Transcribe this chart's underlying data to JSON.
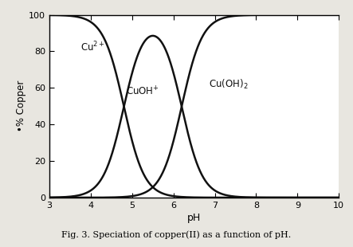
{
  "title": "Fig. 3. Speciation of copper(II) as a function of pH.",
  "xlabel": "pH",
  "ylabel": "% Copper",
  "ylabel_prefix": "•",
  "xlim": [
    3,
    10
  ],
  "ylim": [
    0,
    100
  ],
  "xticks": [
    3,
    4,
    5,
    6,
    7,
    8,
    9,
    10
  ],
  "yticks": [
    0,
    20,
    40,
    60,
    80,
    100
  ],
  "plot_bg": "#ffffff",
  "fig_bg": "#e8e6e0",
  "line_color": "#111111",
  "label_Cu2": "Cu$^{2+}$",
  "label_CuOH": "CuOH$^{+}$",
  "label_CuOH2": "Cu(OH)$_2$",
  "Cu2_mid": 4.8,
  "Cu2_k": 4.0,
  "CuOH2_mid": 6.2,
  "CuOH2_k": 4.0,
  "lw": 1.8
}
